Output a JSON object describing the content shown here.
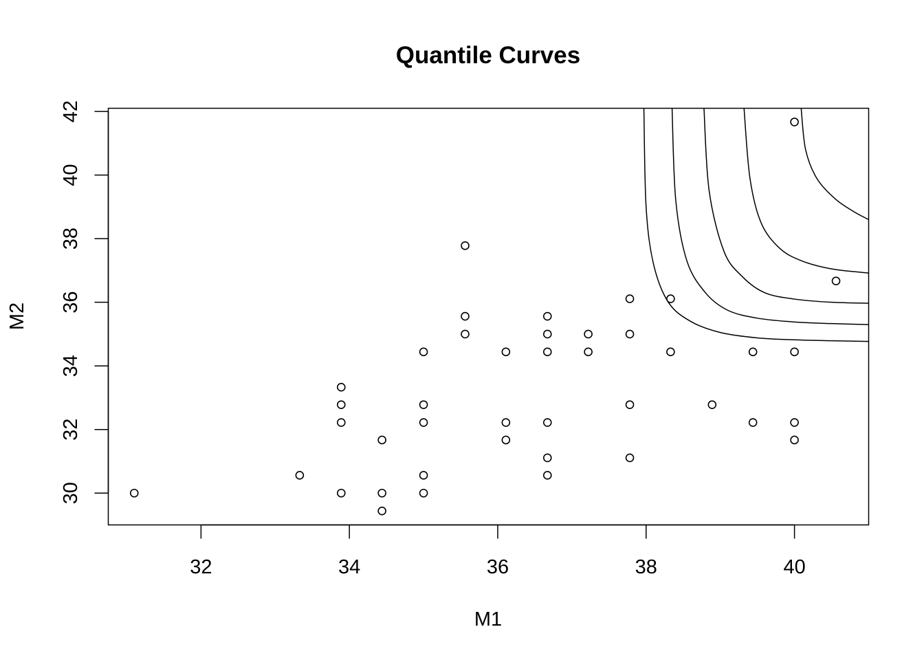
{
  "chart_data": {
    "type": "scatter",
    "title": "Quantile Curves",
    "xlabel": "M1",
    "ylabel": "M2",
    "xlim": [
      30.75,
      41.0
    ],
    "ylim": [
      29.0,
      42.1
    ],
    "xticks": [
      32,
      34,
      36,
      38,
      40
    ],
    "yticks": [
      30,
      32,
      34,
      36,
      38,
      40,
      42
    ],
    "grid": false,
    "legend": "none",
    "points": [
      [
        31.1,
        30.0
      ],
      [
        33.33,
        30.56
      ],
      [
        33.89,
        30.0
      ],
      [
        33.89,
        32.22
      ],
      [
        33.89,
        32.78
      ],
      [
        33.89,
        33.33
      ],
      [
        34.44,
        29.44
      ],
      [
        34.44,
        30.0
      ],
      [
        34.44,
        31.67
      ],
      [
        35.0,
        30.0
      ],
      [
        35.0,
        30.56
      ],
      [
        35.0,
        32.22
      ],
      [
        35.0,
        32.78
      ],
      [
        35.0,
        34.44
      ],
      [
        35.56,
        35.0
      ],
      [
        35.56,
        35.56
      ],
      [
        35.56,
        37.78
      ],
      [
        36.11,
        31.67
      ],
      [
        36.11,
        32.22
      ],
      [
        36.11,
        34.44
      ],
      [
        36.67,
        30.56
      ],
      [
        36.67,
        31.11
      ],
      [
        36.67,
        32.22
      ],
      [
        36.67,
        34.44
      ],
      [
        36.67,
        35.0
      ],
      [
        36.67,
        35.56
      ],
      [
        37.22,
        34.44
      ],
      [
        37.22,
        35.0
      ],
      [
        37.78,
        31.11
      ],
      [
        37.78,
        32.78
      ],
      [
        37.78,
        35.0
      ],
      [
        37.78,
        36.11
      ],
      [
        38.33,
        34.44
      ],
      [
        38.33,
        36.11
      ],
      [
        38.89,
        32.78
      ],
      [
        39.44,
        32.22
      ],
      [
        39.44,
        34.44
      ],
      [
        40.0,
        31.67
      ],
      [
        40.0,
        32.22
      ],
      [
        40.0,
        34.44
      ],
      [
        40.0,
        41.67
      ],
      [
        40.56,
        36.67
      ]
    ],
    "series": [
      {
        "x": [
          37.97,
          38.0,
          38.1,
          38.3,
          38.6,
          39.0,
          39.5,
          40.0,
          40.5,
          41.0
        ],
        "y": [
          42.1,
          39.0,
          37.2,
          36.0,
          35.4,
          35.05,
          34.88,
          34.82,
          34.79,
          34.77
        ]
      },
      {
        "x": [
          38.35,
          38.4,
          38.55,
          38.8,
          39.1,
          39.5,
          40.0,
          40.5,
          41.0
        ],
        "y": [
          42.1,
          39.2,
          37.3,
          36.3,
          35.75,
          35.5,
          35.38,
          35.33,
          35.3
        ]
      },
      {
        "x": [
          38.78,
          38.85,
          39.05,
          39.3,
          39.6,
          40.0,
          40.5,
          41.0
        ],
        "y": [
          42.1,
          39.5,
          37.6,
          36.8,
          36.3,
          36.1,
          36.0,
          35.97
        ]
      },
      {
        "x": [
          39.32,
          39.4,
          39.55,
          39.8,
          40.1,
          40.5,
          41.0
        ],
        "y": [
          42.1,
          39.9,
          38.5,
          37.7,
          37.3,
          37.05,
          36.92
        ]
      },
      {
        "x": [
          40.09,
          40.15,
          40.3,
          40.55,
          40.8,
          41.0
        ],
        "y": [
          42.1,
          40.8,
          39.9,
          39.25,
          38.85,
          38.6
        ]
      }
    ]
  }
}
